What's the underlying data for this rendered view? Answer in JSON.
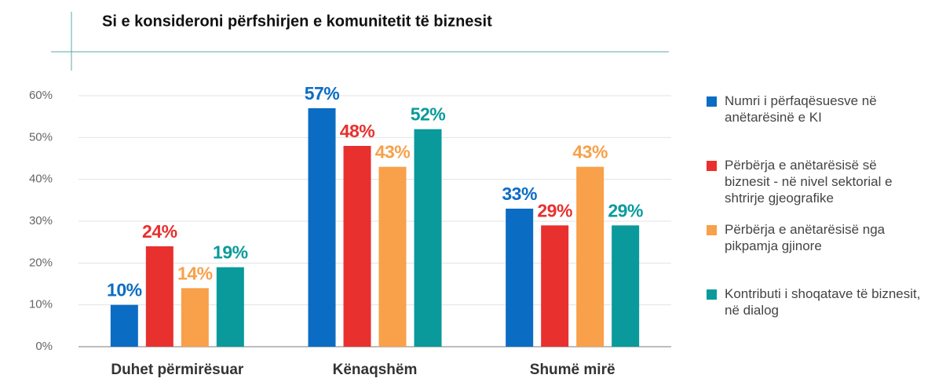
{
  "chart_data": {
    "type": "bar",
    "title": "Si e konsideroni përfshirjen e komunitetit të biznesit",
    "categories": [
      "Duhet përmirësuar",
      "Kënaqshëm",
      "Shumë mirë"
    ],
    "series": [
      {
        "name": "Numri i përfaqësuesve në anëtarësinë e KI",
        "color": "#0b6cc4",
        "values": [
          10,
          57,
          33
        ],
        "value_labels": [
          "10%",
          "57%",
          "33%"
        ]
      },
      {
        "name": "Përbërja e anëtarësisë së biznesit - në nivel sektorial e shtrirje gjeografike",
        "color": "#e8302f",
        "values": [
          24,
          48,
          29
        ],
        "value_labels": [
          "24%",
          "48%",
          "29%"
        ]
      },
      {
        "name": "Përbërja e anëtarësisë nga pikpamja gjinore",
        "color": "#f8a04a",
        "values": [
          14,
          43,
          43
        ],
        "value_labels": [
          "14%",
          "43%",
          "43%"
        ]
      },
      {
        "name": "Kontributi i shoqatave të biznesit, në dialog",
        "color": "#0a9a9c",
        "values": [
          19,
          52,
          29
        ],
        "value_labels": [
          "19%",
          "52%",
          "29%"
        ]
      }
    ],
    "ylim": [
      0,
      60
    ],
    "yticks": [
      {
        "value": 0,
        "label": "0%"
      },
      {
        "value": 10,
        "label": "10%"
      },
      {
        "value": 20,
        "label": "20%"
      },
      {
        "value": 30,
        "label": "30%"
      },
      {
        "value": 40,
        "label": "40%"
      },
      {
        "value": 50,
        "label": "50%"
      },
      {
        "value": 60,
        "label": "60%"
      }
    ],
    "grid": true,
    "legend": "right"
  }
}
